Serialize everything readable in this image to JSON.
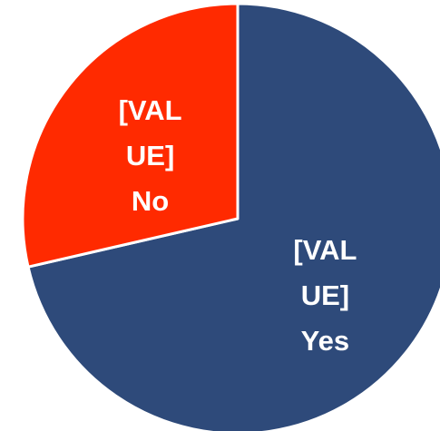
{
  "chart_data": {
    "type": "pie",
    "categories": [
      "Yes",
      "No"
    ],
    "values": [
      71.4,
      28.6
    ],
    "value_labels": [
      "[VALUE]",
      "[VALUE]"
    ],
    "colors": [
      "#2e4a7a",
      "#ff2a00"
    ]
  }
}
